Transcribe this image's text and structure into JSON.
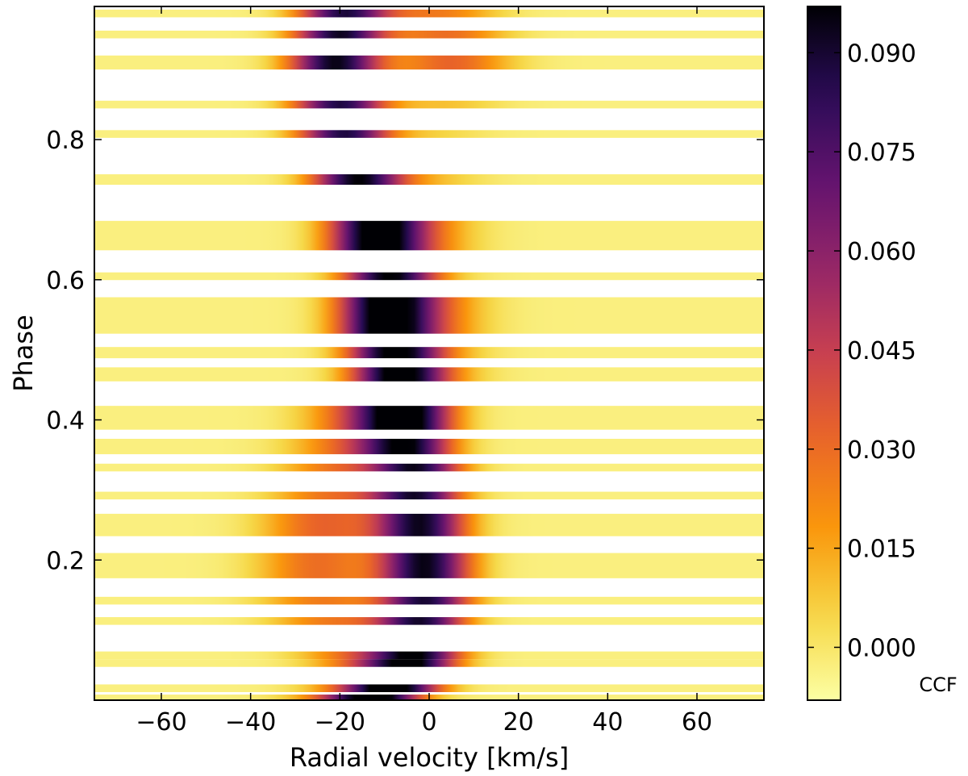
{
  "chart_data": {
    "type": "heatmap",
    "title": "",
    "xlabel": "Radial velocity [km/s]",
    "ylabel": "Phase",
    "xlim": [
      -75,
      75
    ],
    "ylim": [
      0.0,
      0.99
    ],
    "xticks": [
      -60,
      -40,
      -20,
      0,
      20,
      40,
      60
    ],
    "xtick_labels": [
      "−60",
      "−40",
      "−20",
      "0",
      "20",
      "40",
      "60"
    ],
    "yticks": [
      0.2,
      0.4,
      0.6,
      0.8
    ],
    "ytick_labels": [
      "0.2",
      "0.4",
      "0.6",
      "0.8"
    ],
    "colorbar": {
      "label": "CCF",
      "range": [
        -0.008,
        0.097
      ],
      "ticks": [
        0.0,
        0.015,
        0.03,
        0.045,
        0.06,
        0.075,
        0.09
      ],
      "tick_labels": [
        "0.000",
        "0.015",
        "0.030",
        "0.045",
        "0.060",
        "0.075",
        "0.090"
      ],
      "colormap": "inferno_r"
    },
    "observations": [
      {
        "phase": 0.98,
        "height": 0.011,
        "primary_rv": -19,
        "primary_depth": 0.09,
        "secondary_rv": 2,
        "secondary_depth": 0.028
      },
      {
        "phase": 0.95,
        "height": 0.011,
        "primary_rv": -20,
        "primary_depth": 0.095,
        "secondary_rv": 4,
        "secondary_depth": 0.032
      },
      {
        "phase": 0.91,
        "height": 0.02,
        "primary_rv": -21,
        "primary_depth": 0.097,
        "secondary_rv": 5,
        "secondary_depth": 0.035
      },
      {
        "phase": 0.85,
        "height": 0.011,
        "primary_rv": -20,
        "primary_depth": 0.09,
        "secondary_rv": 3,
        "secondary_depth": 0.012
      },
      {
        "phase": 0.808,
        "height": 0.011,
        "primary_rv": -19,
        "primary_depth": 0.09,
        "secondary_rv": 0,
        "secondary_depth": 0.008
      },
      {
        "phase": 0.743,
        "height": 0.015,
        "primary_rv": -16,
        "primary_depth": 0.097,
        "secondary_rv": -1,
        "secondary_depth": 0.012
      },
      {
        "phase": 0.663,
        "height": 0.042,
        "primary_rv": -12,
        "primary_depth": 0.097,
        "secondary_rv": -4,
        "secondary_depth": 0.03
      },
      {
        "phase": 0.605,
        "height": 0.011,
        "primary_rv": -9,
        "primary_depth": 0.092,
        "secondary_rv": -4,
        "secondary_depth": 0.012
      },
      {
        "phase": 0.549,
        "height": 0.052,
        "primary_rv": -10,
        "primary_depth": 0.097,
        "secondary_rv": -2,
        "secondary_depth": 0.035
      },
      {
        "phase": 0.496,
        "height": 0.016,
        "primary_rv": -8,
        "primary_depth": 0.092,
        "secondary_rv": -2,
        "secondary_depth": 0.022
      },
      {
        "phase": 0.465,
        "height": 0.02,
        "primary_rv": -7,
        "primary_depth": 0.095,
        "secondary_rv": -2,
        "secondary_depth": 0.022
      },
      {
        "phase": 0.403,
        "height": 0.034,
        "primary_rv": -5,
        "primary_depth": 0.097,
        "secondary_rv": -14,
        "secondary_depth": 0.04
      },
      {
        "phase": 0.362,
        "height": 0.022,
        "primary_rv": -5,
        "primary_depth": 0.094,
        "secondary_rv": -18,
        "secondary_depth": 0.03
      },
      {
        "phase": 0.332,
        "height": 0.011,
        "primary_rv": -3,
        "primary_depth": 0.092,
        "secondary_rv": -20,
        "secondary_depth": 0.03
      },
      {
        "phase": 0.292,
        "height": 0.011,
        "primary_rv": -3,
        "primary_depth": 0.092,
        "secondary_rv": -22,
        "secondary_depth": 0.03
      },
      {
        "phase": 0.25,
        "height": 0.032,
        "primary_rv": -2,
        "primary_depth": 0.095,
        "secondary_rv": -24,
        "secondary_depth": 0.035
      },
      {
        "phase": 0.192,
        "height": 0.036,
        "primary_rv": -1,
        "primary_depth": 0.097,
        "secondary_rv": -25,
        "secondary_depth": 0.032
      },
      {
        "phase": 0.142,
        "height": 0.011,
        "primary_rv": -1,
        "primary_depth": 0.092,
        "secondary_rv": -24,
        "secondary_depth": 0.028
      },
      {
        "phase": 0.113,
        "height": 0.011,
        "primary_rv": -2,
        "primary_depth": 0.092,
        "secondary_rv": -22,
        "secondary_depth": 0.028
      },
      {
        "phase": 0.064,
        "height": 0.011,
        "primary_rv": -3,
        "primary_depth": 0.094,
        "secondary_rv": -16,
        "secondary_depth": 0.03
      },
      {
        "phase": 0.053,
        "height": 0.011,
        "primary_rv": -4,
        "primary_depth": 0.094,
        "secondary_rv": -14,
        "secondary_depth": 0.03
      },
      {
        "phase": 0.017,
        "height": 0.011,
        "primary_rv": -8,
        "primary_depth": 0.094,
        "secondary_rv": -14,
        "secondary_depth": 0.03
      },
      {
        "phase": 0.004,
        "height": 0.008,
        "primary_rv": -12,
        "primary_depth": 0.094,
        "secondary_rv": -18,
        "secondary_depth": 0.03
      }
    ],
    "grid": false
  }
}
